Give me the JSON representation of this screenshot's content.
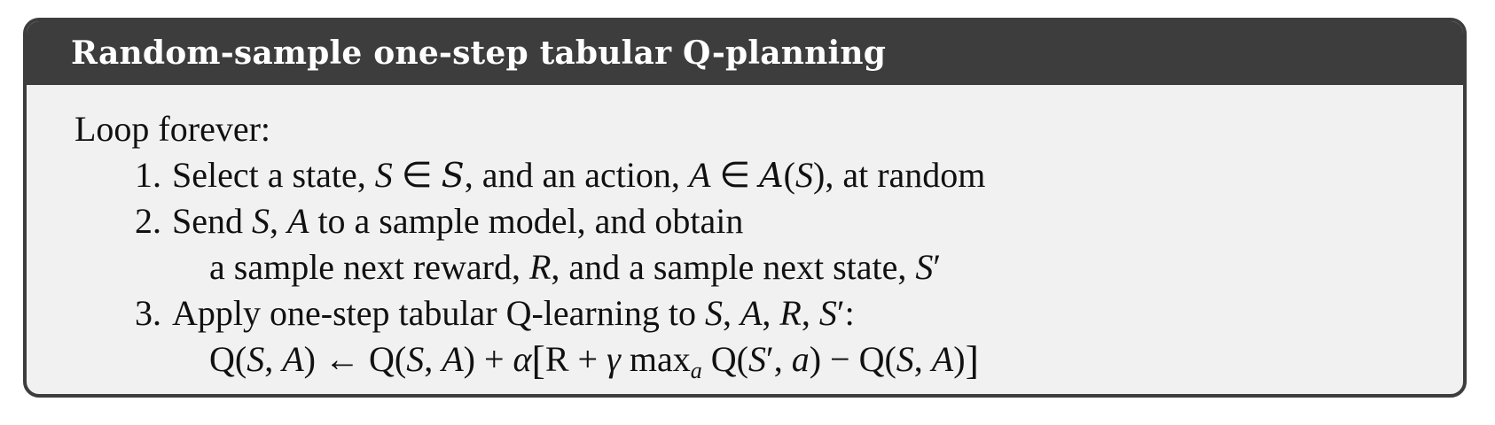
{
  "box": {
    "title": "Random-sample one-step tabular Q-planning",
    "loop_label": "Loop forever:",
    "steps": [
      {
        "number": "1.",
        "lines": [
          "Select a state, S ∈ 𝒮, and an action, A ∈ 𝒜(S), at random"
        ]
      },
      {
        "number": "2.",
        "lines": [
          "Send S, A to a sample model, and obtain",
          "a sample next reward, R, and a sample next state, S′"
        ]
      },
      {
        "number": "3.",
        "lines": [
          "Apply one-step tabular Q-learning to S, A, R, S′:",
          "Q(S, A) ← Q(S, A) + α[R + γ maxₐ Q(S′, a) − Q(S, A)]"
        ]
      }
    ]
  },
  "colors": {
    "border": "#3d3d3d",
    "header_bg": "#3d3d3d",
    "header_text": "#ffffff",
    "body_bg": "#f1f1f1",
    "text": "#111111"
  }
}
